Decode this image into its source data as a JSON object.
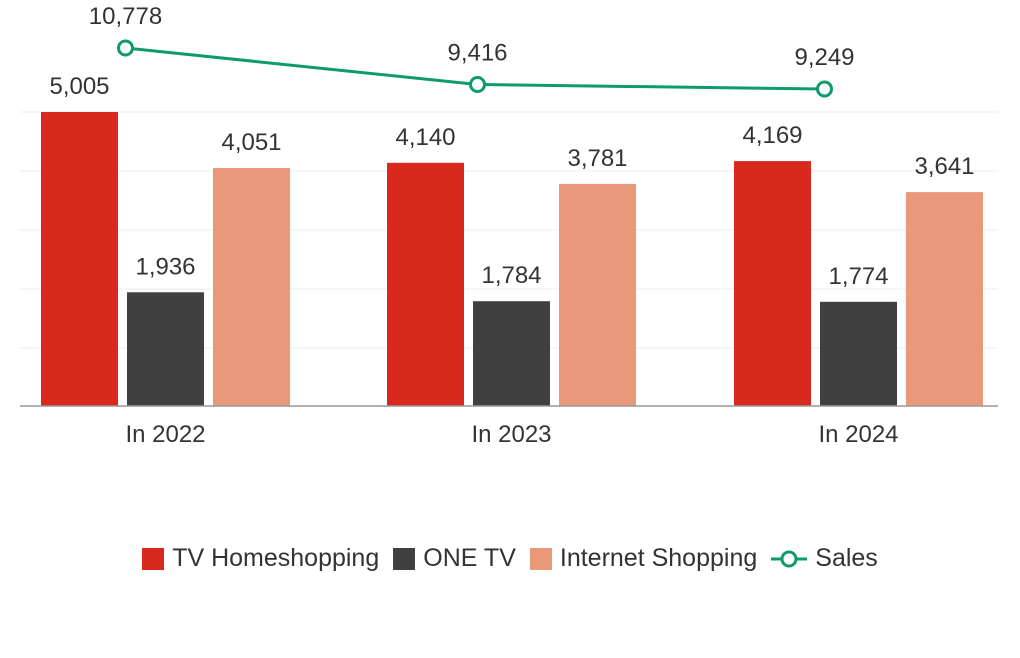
{
  "chart_data": {
    "type": "bar",
    "title": "",
    "xlabel": "",
    "ylabel": "",
    "categories": [
      "In 2022",
      "In 2023",
      "In 2024"
    ],
    "ylim": [
      0,
      5005
    ],
    "grid": true,
    "series": [
      {
        "name": "TV Homeshopping",
        "type": "bar",
        "color": "#D9281E",
        "values": [
          5005,
          4140,
          4169
        ],
        "labels": [
          "5,005",
          "4,140",
          "4,169"
        ]
      },
      {
        "name": "ONE TV",
        "type": "bar",
        "color": "#404040",
        "values": [
          1936,
          1784,
          1774
        ],
        "labels": [
          "1,936",
          "1,784",
          "1,774"
        ]
      },
      {
        "name": "Internet Shopping",
        "type": "bar",
        "color": "#EA987A",
        "values": [
          4051,
          3781,
          3641
        ],
        "labels": [
          "4,051",
          "3,781",
          "3,641"
        ]
      },
      {
        "name": "Sales",
        "type": "line",
        "color": "#0E9A6F",
        "values": [
          10778,
          9416,
          9249
        ],
        "labels": [
          "10,778",
          "9,416",
          "9,249"
        ]
      }
    ],
    "legend": "bottom-center"
  }
}
